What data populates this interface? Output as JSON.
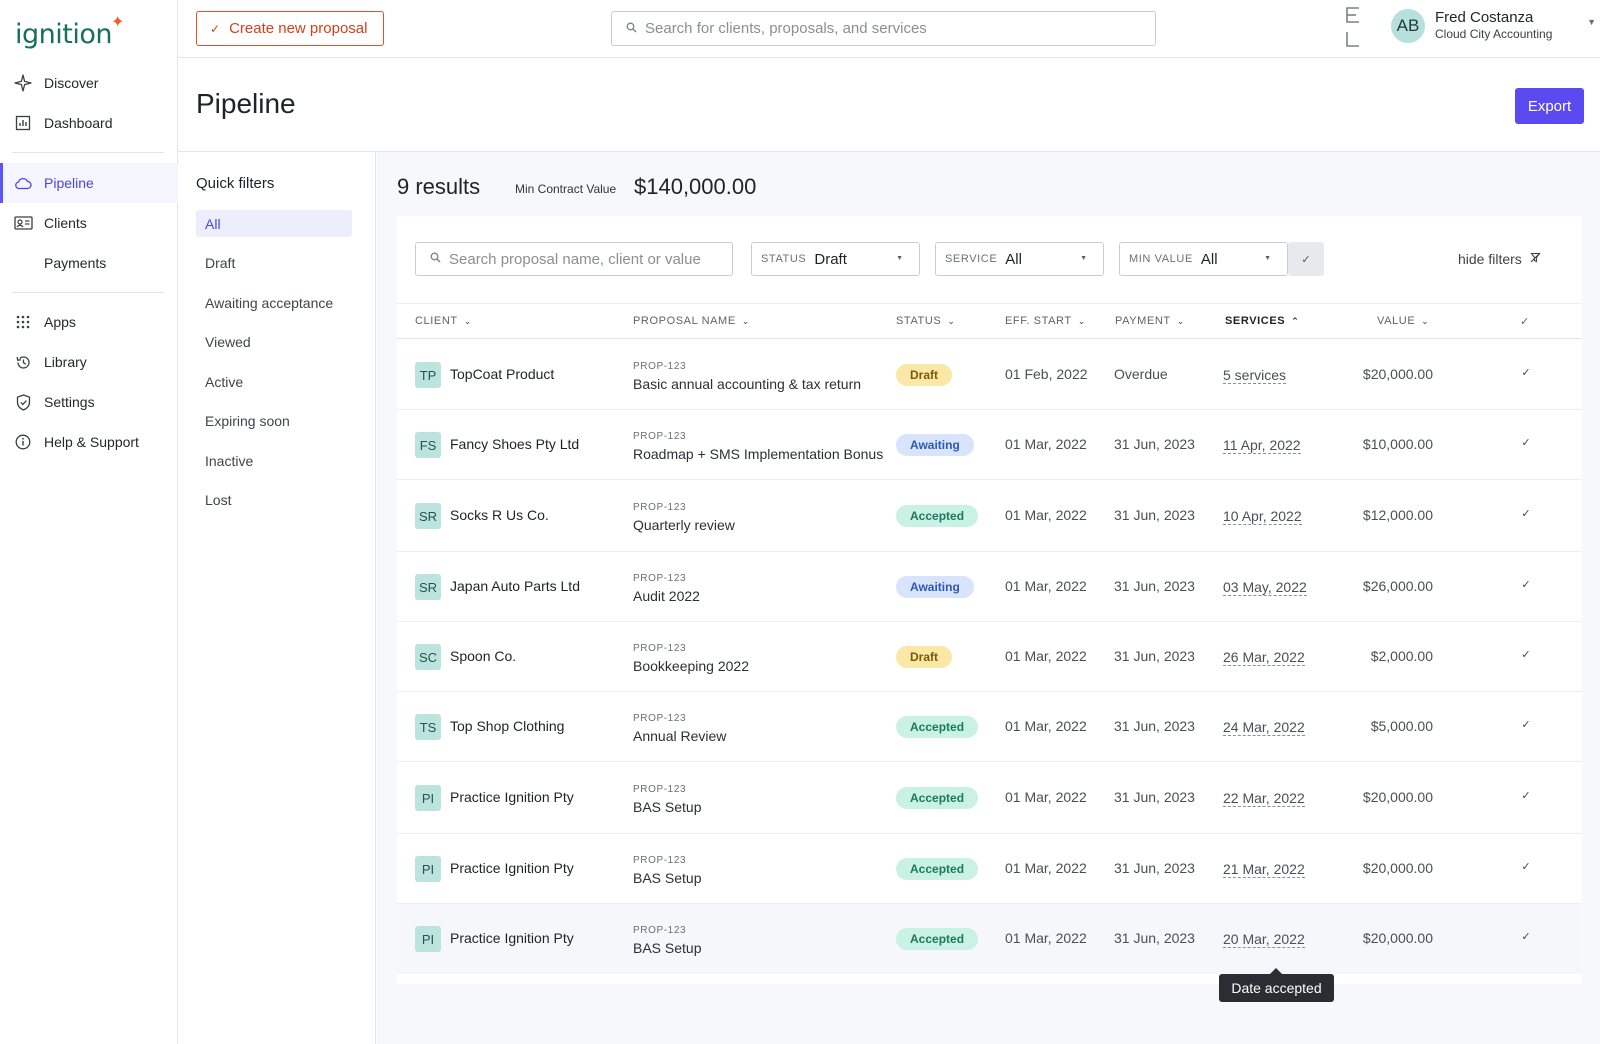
{
  "app": {
    "logo_text": "ignition",
    "logo_mark": "✦"
  },
  "sidebar": {
    "items": [
      {
        "label": "Discover",
        "icon": "sparkle-icon"
      },
      {
        "label": "Dashboard",
        "icon": "chart-icon"
      },
      {
        "label": "Pipeline",
        "icon": "cloud-icon",
        "active": true
      },
      {
        "label": "Clients",
        "icon": "id-card-icon"
      },
      {
        "label": "Payments",
        "icon": ""
      },
      {
        "label": "Apps",
        "icon": "grid-icon"
      },
      {
        "label": "Library",
        "icon": "history-icon"
      },
      {
        "label": "Settings",
        "icon": "shield-icon"
      },
      {
        "label": "Help & Support",
        "icon": "info-icon"
      }
    ]
  },
  "topbar": {
    "create_label": "Create new proposal",
    "search_placeholder": "Search for clients, proposals, and services",
    "user": {
      "initials": "AB",
      "name": "Fred Costanza",
      "org": "Cloud City Accounting"
    }
  },
  "page": {
    "title": "Pipeline",
    "export_label": "Export"
  },
  "quick_filters": {
    "title": "Quick filters",
    "items": [
      "All",
      "Draft",
      "Awaiting acceptance",
      "Viewed",
      "Active",
      "Expiring soon",
      "Inactive",
      "Lost"
    ],
    "active": "All"
  },
  "summary": {
    "results": "9 results",
    "mcv_label": "Min Contract Value",
    "mcv_value": "$140,000.00"
  },
  "filters": {
    "search_placeholder": "Search proposal name, client or value",
    "status": {
      "key": "STATUS",
      "value": "Draft"
    },
    "service": {
      "key": "SERVICE",
      "value": "All"
    },
    "min_value": {
      "key": "MIN VALUE",
      "value": "All"
    },
    "hide_label": "hide filters"
  },
  "table": {
    "columns": {
      "client": "CLIENT",
      "proposal": "PROPOSAL NAME",
      "status": "STATUS",
      "eff_start": "EFF. START",
      "payment": "PAYMENT",
      "services": "SERVICES",
      "value": "VALUE"
    },
    "rows": [
      {
        "initials": "TP",
        "client": "TopCoat Product",
        "prop_id": "PROP-123",
        "proposal": "Basic annual accounting & tax return",
        "status": "Draft",
        "eff_start": "01 Feb, 2022",
        "payment": "Overdue",
        "services": "5 services",
        "value": "$20,000.00"
      },
      {
        "initials": "FS",
        "client": "Fancy Shoes Pty Ltd",
        "prop_id": "PROP-123",
        "proposal": "Roadmap + SMS Implementation Bonus",
        "status": "Awaiting",
        "eff_start": "01 Mar, 2022",
        "payment": "31 Jun, 2023",
        "services": "11 Apr, 2022",
        "value": "$10,000.00"
      },
      {
        "initials": "SR",
        "client": "Socks R Us Co.",
        "prop_id": "PROP-123",
        "proposal": "Quarterly review",
        "status": "Accepted",
        "eff_start": "01 Mar, 2022",
        "payment": "31 Jun, 2023",
        "services": "10 Apr, 2022",
        "value": "$12,000.00"
      },
      {
        "initials": "SR",
        "client": "Japan Auto Parts Ltd",
        "prop_id": "PROP-123",
        "proposal": "Audit 2022",
        "status": "Awaiting",
        "eff_start": "01 Mar, 2022",
        "payment": "31 Jun, 2023",
        "services": "03 May, 2022",
        "value": "$26,000.00"
      },
      {
        "initials": "SC",
        "client": "Spoon Co.",
        "prop_id": "PROP-123",
        "proposal": "Bookkeeping 2022",
        "status": "Draft",
        "eff_start": "01 Mar, 2022",
        "payment": "31 Jun, 2023",
        "services": "26 Mar, 2022",
        "value": "$2,000.00"
      },
      {
        "initials": "TS",
        "client": "Top Shop Clothing",
        "prop_id": "PROP-123",
        "proposal": "Annual Review",
        "status": "Accepted",
        "eff_start": "01 Mar, 2022",
        "payment": "31 Jun, 2023",
        "services": "24 Mar, 2022",
        "value": "$5,000.00"
      },
      {
        "initials": "PI",
        "client": "Practice Ignition Pty",
        "prop_id": "PROP-123",
        "proposal": "BAS Setup",
        "status": "Accepted",
        "eff_start": "01 Mar, 2022",
        "payment": "31 Jun, 2023",
        "services": "22 Mar, 2022",
        "value": "$20,000.00"
      },
      {
        "initials": "PI",
        "client": "Practice Ignition Pty",
        "prop_id": "PROP-123",
        "proposal": "BAS Setup",
        "status": "Accepted",
        "eff_start": "01 Mar, 2022",
        "payment": "31 Jun, 2023",
        "services": "21 Mar, 2022",
        "value": "$20,000.00"
      },
      {
        "initials": "PI",
        "client": "Practice Ignition Pty",
        "prop_id": "PROP-123",
        "proposal": "BAS Setup",
        "status": "Accepted",
        "eff_start": "01 Mar, 2022",
        "payment": "31 Jun, 2023",
        "services": "20 Mar, 2022",
        "value": "$20,000.00"
      }
    ]
  },
  "tooltip": {
    "text": "Date accepted"
  },
  "colors": {
    "brand": "#17705f",
    "accent": "#5b4af0",
    "create": "#d2411b"
  }
}
